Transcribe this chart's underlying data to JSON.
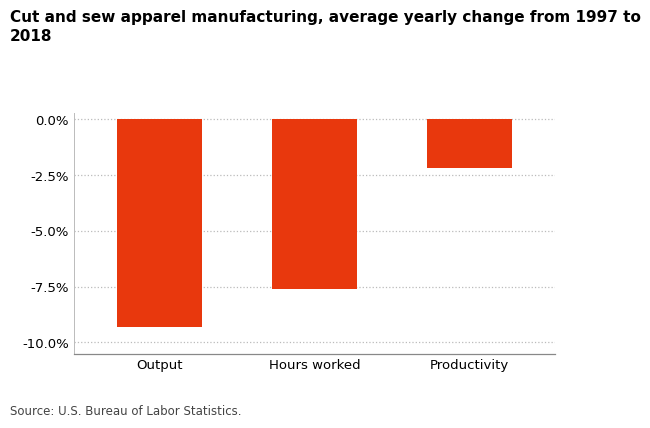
{
  "categories": [
    "Output",
    "Hours worked",
    "Productivity"
  ],
  "values": [
    -9.3,
    -7.6,
    -2.2
  ],
  "bar_color": "#E8380D",
  "title_line1": "Cut and sew apparel manufacturing, average yearly change from 1997 to",
  "title_line2": "2018",
  "ylim": [
    -10.5,
    0.3
  ],
  "yticks": [
    0.0,
    -2.5,
    -5.0,
    -7.5,
    -10.0
  ],
  "source_text": "Source: U.S. Bureau of Labor Statistics.",
  "background_color": "#ffffff",
  "grid_color": "#bbbbbb",
  "title_fontsize": 11,
  "tick_fontsize": 9.5,
  "source_fontsize": 8.5
}
